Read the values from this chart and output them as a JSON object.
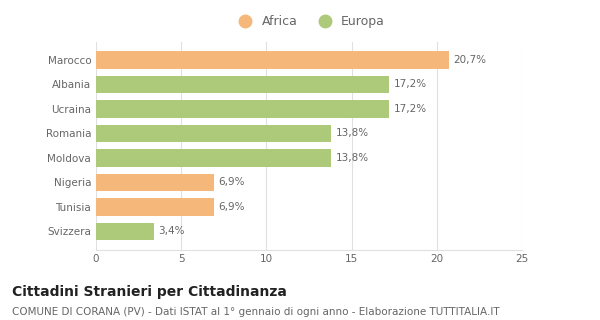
{
  "categories": [
    "Marocco",
    "Albania",
    "Ucraina",
    "Romania",
    "Moldova",
    "Nigeria",
    "Tunisia",
    "Svizzera"
  ],
  "values": [
    20.7,
    17.2,
    17.2,
    13.8,
    13.8,
    6.9,
    6.9,
    3.4
  ],
  "labels": [
    "20,7%",
    "17,2%",
    "17,2%",
    "13,8%",
    "13,8%",
    "6,9%",
    "6,9%",
    "3,4%"
  ],
  "colors": [
    "#f5b87a",
    "#adc97a",
    "#adc97a",
    "#adc97a",
    "#adc97a",
    "#f5b87a",
    "#f5b87a",
    "#adc97a"
  ],
  "xlim": [
    0,
    25
  ],
  "xticks": [
    0,
    5,
    10,
    15,
    20,
    25
  ],
  "title": "Cittadini Stranieri per Cittadinanza",
  "subtitle": "COMUNE DI CORANA (PV) - Dati ISTAT al 1° gennaio di ogni anno - Elaborazione TUTTITALIA.IT",
  "legend_africa_color": "#f5b87a",
  "legend_europa_color": "#adc97a",
  "legend_africa_label": "Africa",
  "legend_europa_label": "Europa",
  "bar_height": 0.72,
  "bg_color": "#ffffff",
  "grid_color": "#e0e0e0",
  "title_fontsize": 10,
  "subtitle_fontsize": 7.5,
  "label_fontsize": 7.5,
  "tick_fontsize": 7.5,
  "legend_fontsize": 9,
  "text_color": "#666666",
  "title_color": "#222222"
}
